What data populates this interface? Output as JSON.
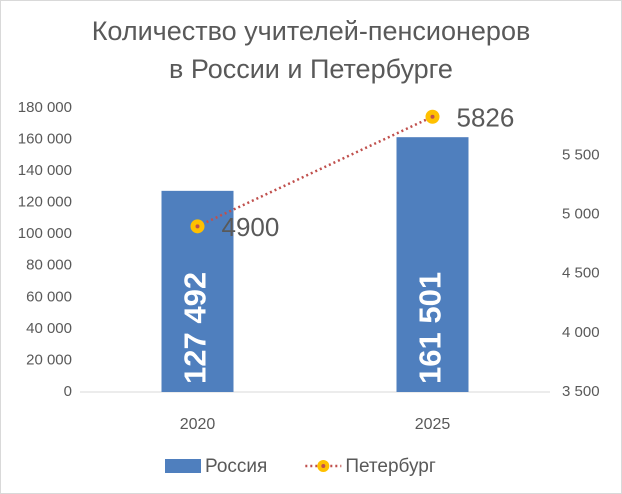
{
  "chart_data": {
    "type": "bar_line",
    "title": [
      "Количество учителей-пенсионеров",
      "в России и Петербурге"
    ],
    "categories": [
      "2020",
      "2025"
    ],
    "series": [
      {
        "name": "Россия",
        "type": "bar",
        "color": "#4f7fbe",
        "values": [
          127492,
          161501
        ],
        "value_labels": [
          "127 492",
          "161 501"
        ]
      },
      {
        "name": "Петербург",
        "type": "line",
        "axis": "y2",
        "color": "#c0504d",
        "marker_color": "#ffc000",
        "values": [
          4900,
          5826
        ]
      }
    ],
    "ylim": [
      0,
      180000
    ],
    "yticks": [
      0,
      {
        "value": 20000,
        "label": "20 000"
      },
      {
        "value": 40000,
        "label": "40 000"
      },
      {
        "value": 60000,
        "label": "60 000"
      },
      {
        "value": 80000,
        "label": "80 000"
      },
      {
        "value": 100000,
        "label": "100 000"
      },
      {
        "value": 120000,
        "label": "120 000"
      },
      {
        "value": 140000,
        "label": "140 000"
      },
      {
        "value": 160000,
        "label": "160 000"
      },
      {
        "value": 180000,
        "label": "180 000"
      }
    ],
    "y2lim": [
      3500,
      5900
    ],
    "y2ticks": [
      {
        "value": 3500,
        "label": "3 500"
      },
      {
        "value": 4000,
        "label": "4 000"
      },
      {
        "value": 4500,
        "label": "4 500"
      },
      {
        "value": 5000,
        "label": "5 000"
      },
      {
        "value": 5500,
        "label": "5 500"
      }
    ],
    "legend": "bottom"
  }
}
